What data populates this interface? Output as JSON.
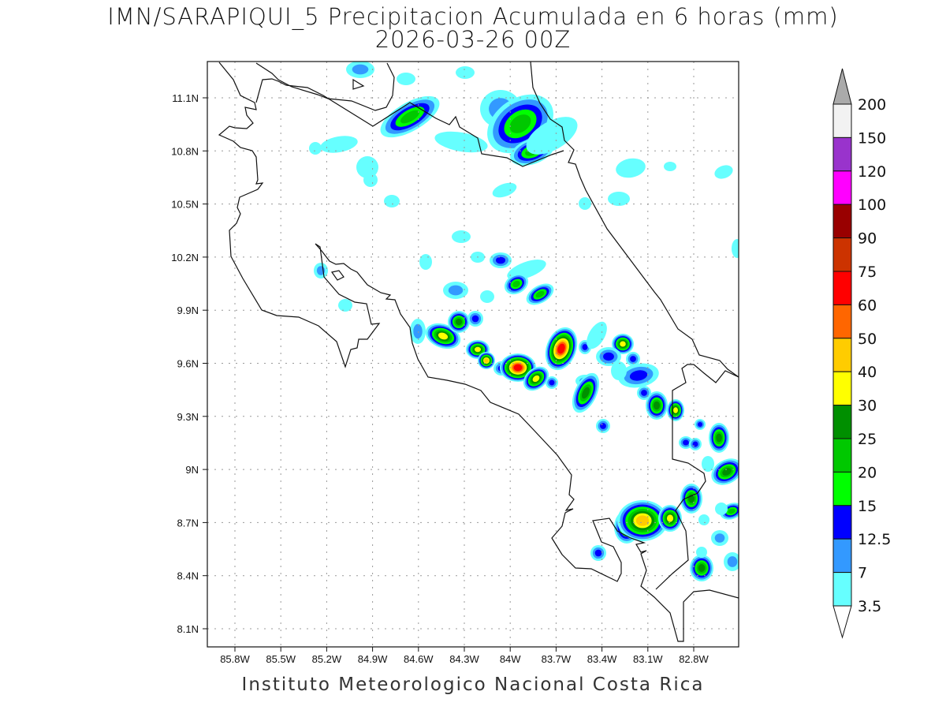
{
  "title": {
    "line1": "IMN/SARAPIQUI_5 Precipitacion Acumulada en 6 horas (mm)",
    "line2": "2026-03-26 00Z"
  },
  "footer": "Instituto Meteorologico Nacional Costa Rica",
  "map": {
    "lon_ticks": [
      "85.8W",
      "85.5W",
      "85.2W",
      "84.9W",
      "84.6W",
      "84.3W",
      "84W",
      "83.7W",
      "83.4W",
      "83.1W",
      "82.8W"
    ],
    "lat_ticks": [
      "11.1N",
      "10.8N",
      "10.5N",
      "10.2N",
      "9.9N",
      "9.6N",
      "9.3N",
      "9N",
      "8.7N",
      "8.4N",
      "8.1N"
    ],
    "lon_range": [
      -85.98,
      -82.51
    ],
    "lat_range": [
      8.0,
      11.3
    ]
  },
  "colorbar": {
    "units": "mm",
    "labels": [
      "200",
      "150",
      "120",
      "100",
      "90",
      "75",
      "60",
      "50",
      "40",
      "30",
      "25",
      "20",
      "15",
      "12.5",
      "7",
      "3.5"
    ],
    "colors": [
      "#f2f2f2",
      "#9933cc",
      "#ff00ff",
      "#990000",
      "#cc3300",
      "#ff0000",
      "#ff6600",
      "#ffcc00",
      "#ffff00",
      "#008f00",
      "#00c800",
      "#00ff00",
      "#0000ff",
      "#3399ff",
      "#66ffff"
    ],
    "over_color": "#aaaaaa",
    "under_color": "#ffffff"
  },
  "precip_levels": [
    "#66ffff",
    "#3399ff",
    "#0000ff",
    "#00ff00",
    "#00c800",
    "#008f00",
    "#ffff00",
    "#ffcc00",
    "#ff6600",
    "#ff0000"
  ]
}
